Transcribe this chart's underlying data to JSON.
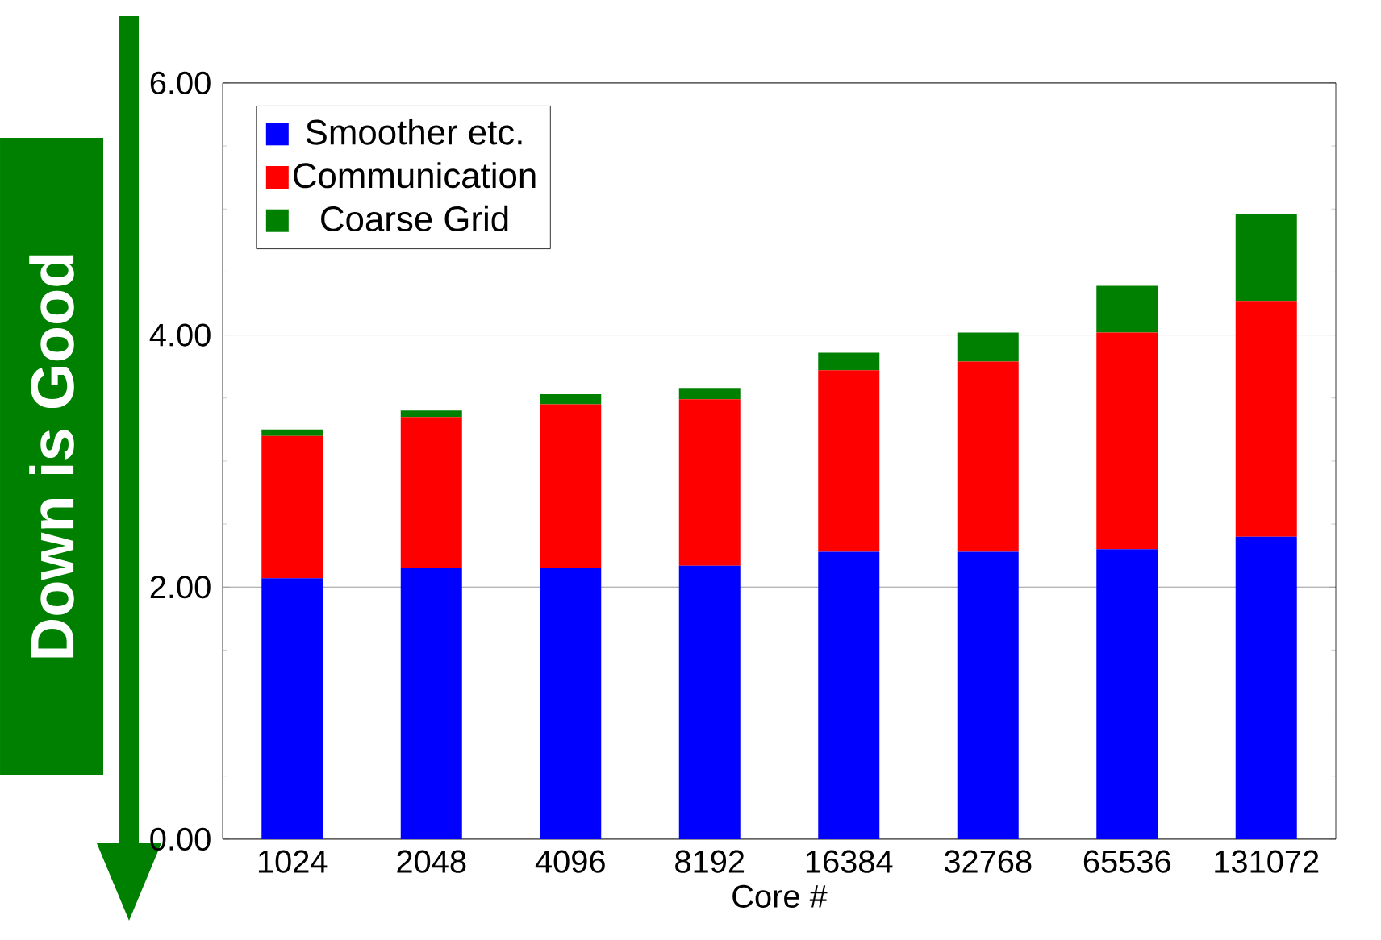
{
  "chart_data": {
    "type": "bar",
    "stacked": true,
    "xlabel": "Core #",
    "categories": [
      "1024",
      "2048",
      "4096",
      "8192",
      "16384",
      "32768",
      "65536",
      "131072"
    ],
    "series": [
      {
        "name": "Smoother etc.",
        "color": "#0000ff",
        "values": [
          2.07,
          2.15,
          2.15,
          2.17,
          2.28,
          2.28,
          2.3,
          2.4
        ]
      },
      {
        "name": "Communication",
        "color": "#ff0000",
        "values": [
          1.13,
          1.2,
          1.3,
          1.32,
          1.44,
          1.51,
          1.72,
          1.87
        ]
      },
      {
        "name": "Coarse Grid",
        "color": "#008000",
        "values": [
          0.05,
          0.05,
          0.08,
          0.09,
          0.14,
          0.23,
          0.37,
          0.69
        ]
      }
    ],
    "ylim": [
      0,
      6
    ],
    "yticks": [
      {
        "value": 0,
        "label": "0.00"
      },
      {
        "value": 2,
        "label": "2.00"
      },
      {
        "value": 4,
        "label": "4.00"
      },
      {
        "value": 6,
        "label": "6.00"
      }
    ],
    "grid": "y",
    "legend": "top left",
    "annotations": [
      "Down is Good"
    ]
  }
}
